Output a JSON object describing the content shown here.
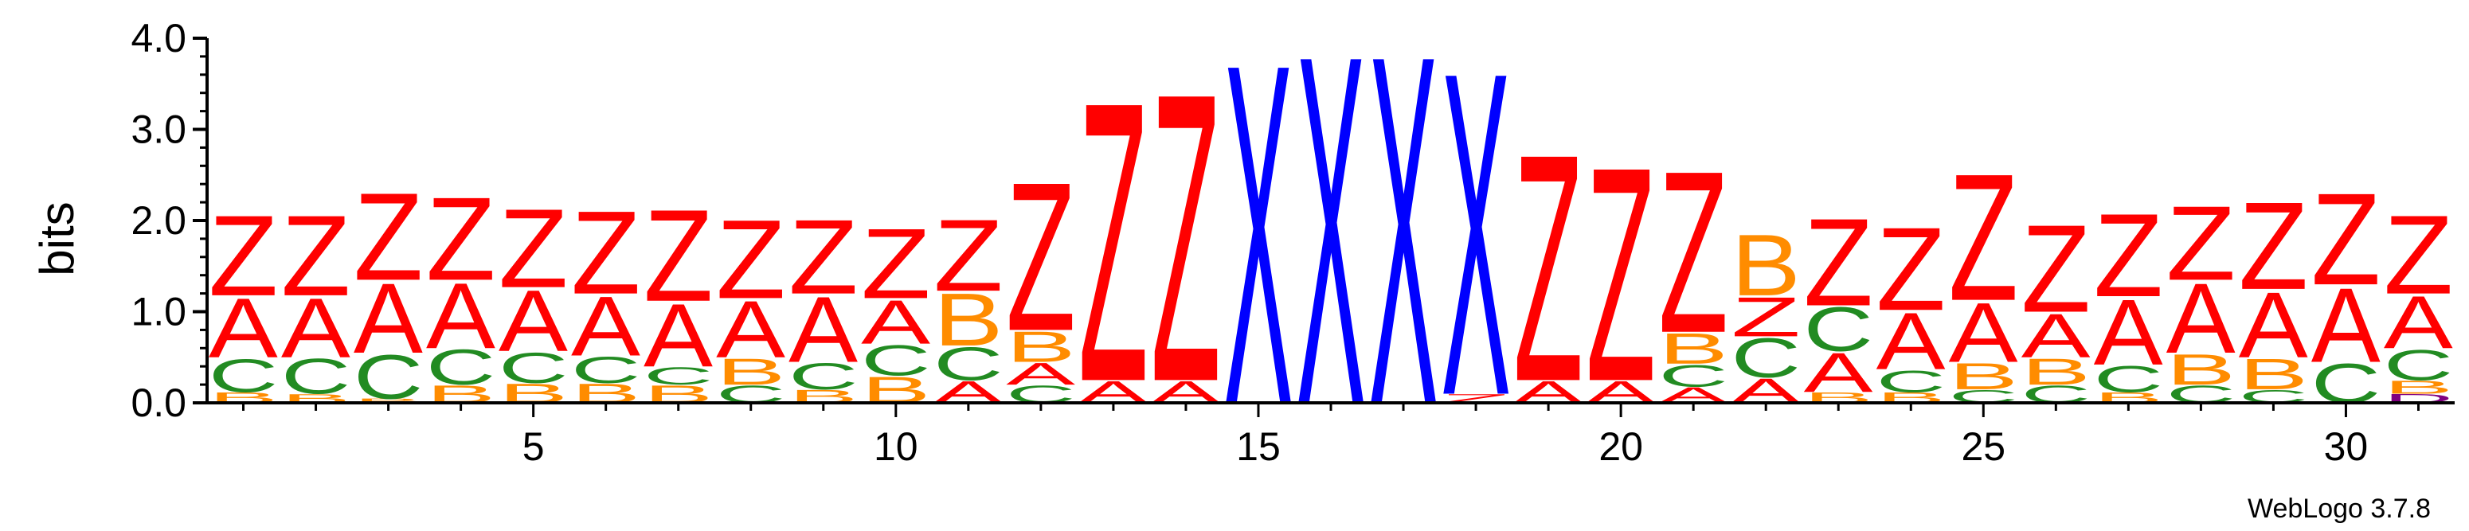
{
  "chart_data": {
    "type": "sequence-logo",
    "ylabel": "bits",
    "ylim": [
      0,
      4
    ],
    "y_ticks": [
      "0.0",
      "1.0",
      "2.0",
      "3.0",
      "4.0"
    ],
    "x_range": [
      1,
      31
    ],
    "x_tick_labels": [
      "5",
      "10",
      "15",
      "20",
      "25",
      "30"
    ],
    "x_tick_values": [
      5,
      10,
      15,
      20,
      25,
      30
    ],
    "colors": {
      "Z": "#ff0000",
      "A": "#ff0000",
      "X": "#0000ff",
      "C": "#228b22",
      "B": "#ff8c00",
      "D": "#800080"
    },
    "positions": [
      {
        "pos": 1,
        "stack": [
          [
            "B",
            0.12
          ],
          [
            "C",
            0.38
          ],
          [
            "A",
            0.68
          ],
          [
            "Z",
            0.92
          ]
        ]
      },
      {
        "pos": 2,
        "stack": [
          [
            "B",
            0.1
          ],
          [
            "C",
            0.4
          ],
          [
            "A",
            0.68
          ],
          [
            "Z",
            0.92
          ]
        ]
      },
      {
        "pos": 3,
        "stack": [
          [
            "B",
            0.05
          ],
          [
            "C",
            0.5
          ],
          [
            "A",
            0.8
          ],
          [
            "Z",
            1.0
          ]
        ]
      },
      {
        "pos": 4,
        "stack": [
          [
            "B",
            0.2
          ],
          [
            "C",
            0.4
          ],
          [
            "A",
            0.75
          ],
          [
            "Z",
            0.95
          ]
        ]
      },
      {
        "pos": 5,
        "stack": [
          [
            "B",
            0.22
          ],
          [
            "C",
            0.35
          ],
          [
            "A",
            0.7
          ],
          [
            "Z",
            0.9
          ]
        ]
      },
      {
        "pos": 6,
        "stack": [
          [
            "B",
            0.22
          ],
          [
            "C",
            0.3
          ],
          [
            "A",
            0.68
          ],
          [
            "Z",
            0.95
          ]
        ]
      },
      {
        "pos": 7,
        "stack": [
          [
            "B",
            0.2
          ],
          [
            "C",
            0.2
          ],
          [
            "A",
            0.72
          ],
          [
            "Z",
            1.05
          ]
        ]
      },
      {
        "pos": 8,
        "stack": [
          [
            "C",
            0.2
          ],
          [
            "B",
            0.3
          ],
          [
            "A",
            0.65
          ],
          [
            "Z",
            0.9
          ]
        ]
      },
      {
        "pos": 9,
        "stack": [
          [
            "B",
            0.15
          ],
          [
            "C",
            0.3
          ],
          [
            "A",
            0.75
          ],
          [
            "Z",
            0.85
          ]
        ]
      },
      {
        "pos": 10,
        "stack": [
          [
            "B",
            0.3
          ],
          [
            "C",
            0.35
          ],
          [
            "A",
            0.5
          ],
          [
            "Z",
            0.8
          ]
        ]
      },
      {
        "pos": 11,
        "stack": [
          [
            "A",
            0.25
          ],
          [
            "C",
            0.38
          ],
          [
            "B",
            0.6
          ],
          [
            "Z",
            0.82
          ]
        ]
      },
      {
        "pos": 12,
        "stack": [
          [
            "C",
            0.2
          ],
          [
            "A",
            0.25
          ],
          [
            "B",
            0.35
          ],
          [
            "Z",
            1.7
          ]
        ]
      },
      {
        "pos": 13,
        "stack": [
          [
            "A",
            0.25
          ],
          [
            "Z",
            3.2
          ]
        ]
      },
      {
        "pos": 14,
        "stack": [
          [
            "A",
            0.25
          ],
          [
            "Z",
            3.3
          ]
        ]
      },
      {
        "pos": 15,
        "stack": [
          [
            "X",
            3.9
          ]
        ]
      },
      {
        "pos": 16,
        "stack": [
          [
            "X",
            4.0
          ]
        ]
      },
      {
        "pos": 17,
        "stack": [
          [
            "X",
            4.0
          ]
        ]
      },
      {
        "pos": 18,
        "stack": [
          [
            "Z",
            0.1
          ],
          [
            "X",
            3.7
          ]
        ]
      },
      {
        "pos": 19,
        "stack": [
          [
            "A",
            0.25
          ],
          [
            "Z",
            2.6
          ]
        ]
      },
      {
        "pos": 20,
        "stack": [
          [
            "A",
            0.25
          ],
          [
            "Z",
            2.45
          ]
        ]
      },
      {
        "pos": 21,
        "stack": [
          [
            "A",
            0.18
          ],
          [
            "C",
            0.25
          ],
          [
            "B",
            0.35
          ],
          [
            "Z",
            1.85
          ]
        ]
      },
      {
        "pos": 22,
        "stack": [
          [
            "A",
            0.28
          ],
          [
            "C",
            0.45
          ],
          [
            "Z",
            0.45
          ],
          [
            "B",
            0.7
          ]
        ]
      },
      {
        "pos": 23,
        "stack": [
          [
            "B",
            0.12
          ],
          [
            "A",
            0.45
          ],
          [
            "C",
            0.5
          ],
          [
            "Z",
            1.0
          ]
        ]
      },
      {
        "pos": 24,
        "stack": [
          [
            "B",
            0.12
          ],
          [
            "C",
            0.25
          ],
          [
            "A",
            0.65
          ],
          [
            "Z",
            0.95
          ]
        ]
      },
      {
        "pos": 25,
        "stack": [
          [
            "C",
            0.15
          ],
          [
            "B",
            0.3
          ],
          [
            "A",
            0.68
          ],
          [
            "Z",
            1.45
          ]
        ]
      },
      {
        "pos": 26,
        "stack": [
          [
            "C",
            0.2
          ],
          [
            "B",
            0.3
          ],
          [
            "A",
            0.5
          ],
          [
            "Z",
            1.0
          ]
        ]
      },
      {
        "pos": 27,
        "stack": [
          [
            "B",
            0.12
          ],
          [
            "C",
            0.3
          ],
          [
            "A",
            0.75
          ],
          [
            "Z",
            0.95
          ]
        ]
      },
      {
        "pos": 28,
        "stack": [
          [
            "C",
            0.2
          ],
          [
            "B",
            0.35
          ],
          [
            "A",
            0.8
          ],
          [
            "Z",
            0.85
          ]
        ]
      },
      {
        "pos": 29,
        "stack": [
          [
            "C",
            0.15
          ],
          [
            "B",
            0.35
          ],
          [
            "A",
            0.75
          ],
          [
            "Z",
            1.0
          ]
        ]
      },
      {
        "pos": 30,
        "stack": [
          [
            "C",
            0.45
          ],
          [
            "A",
            0.85
          ],
          [
            "Z",
            1.05
          ]
        ]
      },
      {
        "pos": 31,
        "stack": [
          [
            "D",
            0.1
          ],
          [
            "B",
            0.15
          ],
          [
            "C",
            0.35
          ],
          [
            "A",
            0.6
          ],
          [
            "Z",
            0.9
          ]
        ]
      }
    ]
  },
  "footer": {
    "credit": "WebLogo 3.7.8"
  }
}
